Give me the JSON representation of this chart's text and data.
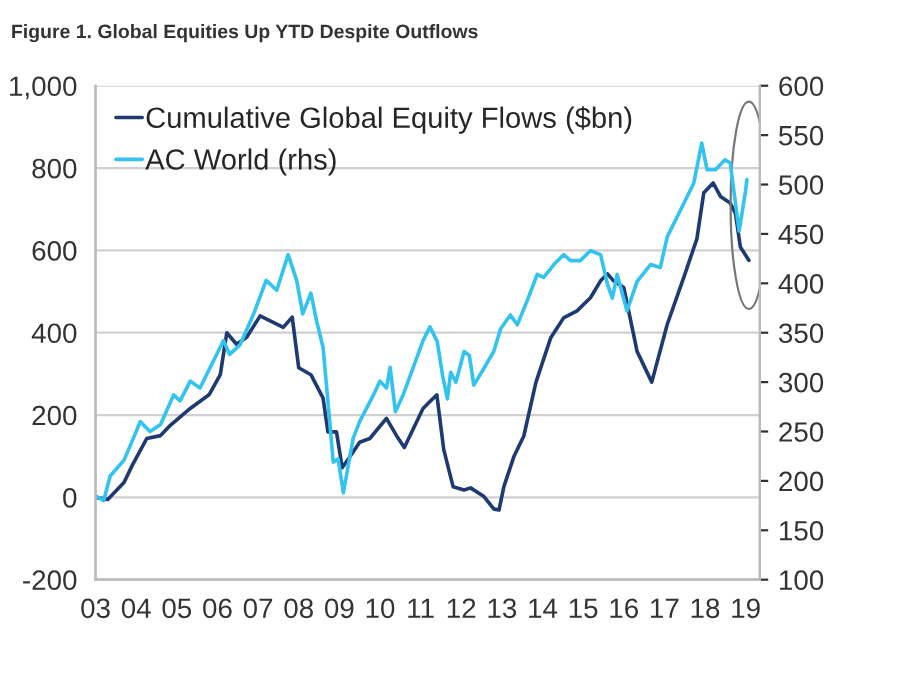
{
  "chart_data": {
    "type": "line",
    "title": "Figure 1. Global Equities Up YTD Despite Outflows",
    "xlim": [
      2003,
      2019.35
    ],
    "xticks": [
      {
        "value": 2003,
        "label": "03"
      },
      {
        "value": 2004,
        "label": "04"
      },
      {
        "value": 2005,
        "label": "05"
      },
      {
        "value": 2006,
        "label": "06"
      },
      {
        "value": 2007,
        "label": "07"
      },
      {
        "value": 2008,
        "label": "08"
      },
      {
        "value": 2009,
        "label": "09"
      },
      {
        "value": 2010,
        "label": "10"
      },
      {
        "value": 2011,
        "label": "11"
      },
      {
        "value": 2012,
        "label": "12"
      },
      {
        "value": 2013,
        "label": "13"
      },
      {
        "value": 2014,
        "label": "14"
      },
      {
        "value": 2015,
        "label": "15"
      },
      {
        "value": 2016,
        "label": "16"
      },
      {
        "value": 2017,
        "label": "17"
      },
      {
        "value": 2018,
        "label": "18"
      },
      {
        "value": 2019,
        "label": "19"
      }
    ],
    "ylim": [
      -200,
      1000
    ],
    "yticks": [
      -200,
      0,
      200,
      400,
      600,
      800,
      {
        "value": 1000,
        "label": "1,000"
      }
    ],
    "y2lim": [
      100,
      600
    ],
    "y2ticks": [
      100,
      150,
      200,
      250,
      300,
      350,
      400,
      450,
      500,
      550,
      600
    ],
    "grid": "y",
    "legend": "top left",
    "line_style": "solid",
    "marker": "none",
    "series": [
      {
        "name": "Cumulative Global Equity Flows ($bn)",
        "color": "#1f3a70",
        "x": [
          2003.0,
          2003.3,
          2003.7,
          2003.9,
          2004.26,
          2004.6,
          2004.84,
          2005.33,
          2005.8,
          2006.07,
          2006.23,
          2006.47,
          2006.72,
          2007.05,
          2007.46,
          2007.62,
          2007.84,
          2008.0,
          2008.3,
          2008.6,
          2008.72,
          2008.93,
          2009.07,
          2009.34,
          2009.5,
          2009.75,
          2010.16,
          2010.4,
          2010.6,
          2011.06,
          2011.23,
          2011.4,
          2011.57,
          2011.8,
          2012.07,
          2012.23,
          2012.56,
          2012.8,
          2012.93,
          2013.05,
          2013.3,
          2013.54,
          2013.84,
          2014.2,
          2014.52,
          2014.85,
          2015.18,
          2015.43,
          2015.6,
          2015.75,
          2016.0,
          2016.33,
          2016.69,
          2017.07,
          2017.48,
          2017.8,
          2017.97,
          2018.2,
          2018.38,
          2018.62,
          2018.75,
          2018.87,
          2019.08
        ],
        "values": [
          0,
          -5,
          36,
          77,
          143,
          150,
          175,
          216,
          250,
          298,
          400,
          372,
          389,
          441,
          421,
          413,
          438,
          315,
          298,
          241,
          159,
          159,
          72,
          110,
          134,
          143,
          192,
          151,
          121,
          216,
          233,
          249,
          116,
          26,
          18,
          23,
          2,
          -28,
          -31,
          26,
          100,
          149,
          280,
          387,
          436,
          453,
          485,
          526,
          543,
          526,
          510,
          354,
          280,
          420,
          535,
          628,
          740,
          764,
          731,
          715,
          690,
          608,
          576
        ]
      },
      {
        "name": "AC World (rhs)",
        "color": "#33c3f0",
        "axis": "y2",
        "x": [
          2003.0,
          2003.2,
          2003.36,
          2003.7,
          2003.93,
          2004.1,
          2004.34,
          2004.6,
          2004.92,
          2005.08,
          2005.33,
          2005.57,
          2005.98,
          2006.15,
          2006.3,
          2006.56,
          2006.89,
          2007.2,
          2007.46,
          2007.74,
          2007.95,
          2008.1,
          2008.3,
          2008.44,
          2008.6,
          2008.77,
          2008.85,
          2008.97,
          2009.1,
          2009.34,
          2009.5,
          2009.84,
          2010.0,
          2010.16,
          2010.25,
          2010.38,
          2010.57,
          2010.82,
          2011.06,
          2011.23,
          2011.41,
          2011.54,
          2011.66,
          2011.74,
          2011.87,
          2012.07,
          2012.2,
          2012.31,
          2012.56,
          2012.8,
          2012.97,
          2013.21,
          2013.38,
          2013.62,
          2013.87,
          2014.03,
          2014.28,
          2014.52,
          2014.69,
          2014.93,
          2015.18,
          2015.43,
          2015.6,
          2015.72,
          2015.84,
          2016.08,
          2016.33,
          2016.66,
          2016.9,
          2017.07,
          2017.48,
          2017.72,
          2017.92,
          2018.05,
          2018.26,
          2018.49,
          2018.62,
          2018.75,
          2018.84,
          2019.0,
          2019.03
        ],
        "values": [
          185,
          180,
          205,
          221,
          243,
          260,
          250,
          257,
          287,
          281,
          301,
          294,
          328,
          342,
          328,
          338,
          369,
          403,
          393,
          429,
          403,
          369,
          390,
          362,
          335,
          257,
          219,
          222,
          188,
          243,
          260,
          287,
          301,
          294,
          315,
          270,
          287,
          315,
          342,
          356,
          341,
          307,
          283,
          310,
          300,
          331,
          327,
          297,
          314,
          331,
          354,
          368,
          358,
          382,
          409,
          406,
          419,
          429,
          423,
          423,
          433,
          429,
          399,
          385,
          409,
          372,
          402,
          419,
          416,
          447,
          481,
          501,
          542,
          515,
          515,
          525,
          522,
          481,
          453,
          494,
          505
        ]
      }
    ]
  }
}
